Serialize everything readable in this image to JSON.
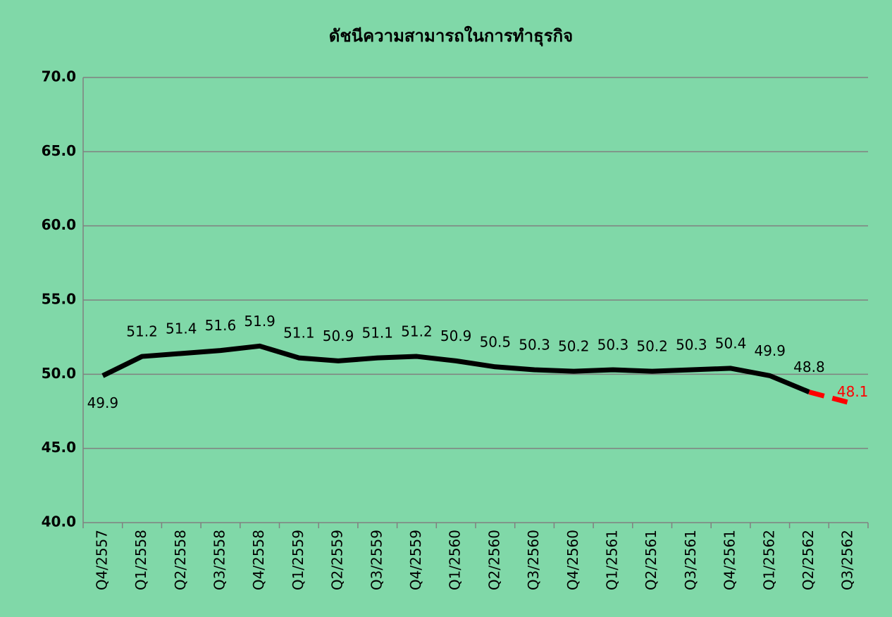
{
  "chart_data": {
    "type": "line",
    "title": "ดัชนีความสามารถในการทำธุรกิจ",
    "categories": [
      "Q4/2557",
      "Q1/2558",
      "Q2/2558",
      "Q3/2558",
      "Q4/2558",
      "Q1/2559",
      "Q2/2559",
      "Q3/2559",
      "Q4/2559",
      "Q1/2560",
      "Q2/2560",
      "Q3/2560",
      "Q4/2560",
      "Q1/2561",
      "Q2/2561",
      "Q3/2561",
      "Q4/2561",
      "Q1/2562",
      "Q2/2562",
      "Q3/2562"
    ],
    "series": [
      {
        "color": "#000000",
        "dashed": false,
        "values": [
          49.9,
          51.2,
          51.4,
          51.6,
          51.9,
          51.1,
          50.9,
          51.1,
          51.2,
          50.9,
          50.5,
          50.3,
          50.2,
          50.3,
          50.2,
          50.3,
          50.4,
          49.9,
          48.8,
          null
        ]
      },
      {
        "color": "#ff0000",
        "dashed": true,
        "values": [
          null,
          null,
          null,
          null,
          null,
          null,
          null,
          null,
          null,
          null,
          null,
          null,
          null,
          null,
          null,
          null,
          null,
          null,
          48.8,
          48.1
        ]
      }
    ],
    "ylim": [
      40,
      70
    ],
    "yticks": [
      {
        "value": 40,
        "label": "40.0"
      },
      {
        "value": 45,
        "label": "45.0"
      },
      {
        "value": 50,
        "label": "50.0"
      },
      {
        "value": 55,
        "label": "55.0"
      },
      {
        "value": 60,
        "label": "60.0"
      },
      {
        "value": 65,
        "label": "65.0"
      },
      {
        "value": 70,
        "label": "70.0"
      }
    ],
    "grid": true
  }
}
